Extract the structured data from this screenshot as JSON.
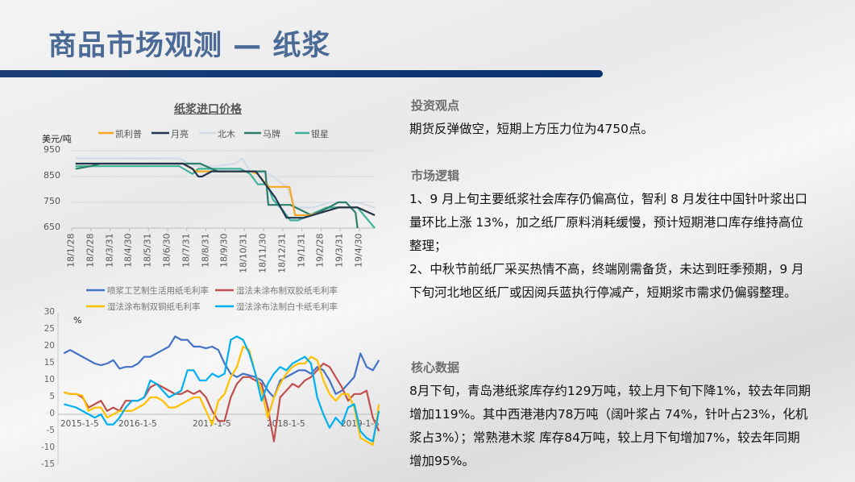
{
  "header": {
    "title": "商品市场观测 — 纸浆"
  },
  "sections": {
    "view": {
      "heading": "投资观点",
      "text": "期货反弹做空，短期上方压力位为4750点。"
    },
    "logic": {
      "heading": "市场逻辑",
      "p1": "1、9 月上旬主要纸浆社会库存仍偏高位，智利 8 月发往中国针叶浆出口量环比上涨 13%，加之纸厂原料消耗缓慢，预计短期港口库存维持高位整理；",
      "p2": "2、中秋节前纸厂采买热情不高，终端刚需备货，未达到旺季预期，9 月下旬河北地区纸厂或因阅兵蓝执行停减产，短期浆市需求仍偏弱整理。"
    },
    "core": {
      "heading": "核心数据",
      "text": "8月下旬，青岛港纸浆库存约129万吨，较上月下旬下降1%，较去年同期增加119%。其中西港港内78万吨（阔叶浆占 74%，针叶占23%，化机浆占3%）；常熟港木浆 库存84万吨，较上月下旬增加7%，较去年同期增加95%。"
    }
  },
  "chart_data": [
    {
      "type": "line",
      "title": "纸浆进口价格",
      "ylabel": "美元/吨",
      "ylim": [
        650,
        950
      ],
      "yticks": [
        "950",
        "850",
        "750",
        "650"
      ],
      "categories": [
        "18/1/28",
        "18/2/28",
        "18/3/31",
        "18/4/30",
        "18/5/31",
        "18/6/30",
        "18/7/31",
        "18/8/31",
        "18/9/30",
        "18/10/31",
        "18/11/30",
        "18/12/31",
        "19/1/31",
        "19/2/28",
        "19/3/31",
        "19/4/30"
      ],
      "grid": true,
      "legend": "top",
      "series": [
        {
          "name": "凯利普",
          "color": "#f5a623",
          "points": [
            [
              0.2,
              900
            ],
            [
              5.8,
              900
            ],
            [
              6.5,
              870
            ],
            [
              9.3,
              870
            ],
            [
              9.7,
              860
            ],
            [
              10.25,
              810
            ],
            [
              11.35,
              810
            ],
            [
              11.65,
              700
            ],
            [
              12.4,
              700
            ],
            [
              13.0,
              710
            ],
            [
              13.9,
              730
            ],
            [
              14.9,
              730
            ],
            [
              15.8,
              700
            ]
          ]
        },
        {
          "name": "月亮",
          "color": "#1f3550",
          "points": [
            [
              0.2,
              900
            ],
            [
              5.8,
              900
            ],
            [
              6.3,
              880
            ],
            [
              6.6,
              850
            ],
            [
              6.8,
              850
            ],
            [
              7.3,
              870
            ],
            [
              9.6,
              870
            ],
            [
              10.1,
              820
            ],
            [
              10.6,
              770
            ],
            [
              11.2,
              690
            ],
            [
              12.1,
              690
            ],
            [
              13.0,
              710
            ],
            [
              13.9,
              730
            ],
            [
              14.9,
              730
            ],
            [
              15.8,
              700
            ]
          ]
        },
        {
          "name": "北木",
          "color": "#d3dbe5",
          "points": [
            [
              0.2,
              920
            ],
            [
              5.6,
              920
            ],
            [
              6.5,
              890
            ],
            [
              7.5,
              890
            ],
            [
              8.5,
              900
            ],
            [
              8.9,
              920
            ],
            [
              9.3,
              870
            ],
            [
              10.3,
              860
            ],
            [
              11.2,
              810
            ],
            [
              11.7,
              730
            ],
            [
              12.6,
              730
            ],
            [
              13.5,
              750
            ],
            [
              14.9,
              750
            ],
            [
              15.8,
              730
            ]
          ]
        },
        {
          "name": "马牌",
          "color": "#2e7d6b",
          "points": [
            [
              0.2,
              880
            ],
            [
              1.0,
              890
            ],
            [
              1.5,
              900
            ],
            [
              6.7,
              900
            ],
            [
              7.3,
              880
            ],
            [
              7.6,
              870
            ],
            [
              9.3,
              870
            ],
            [
              10.1,
              870
            ],
            [
              10.25,
              740
            ],
            [
              11.4,
              740
            ],
            [
              12.5,
              700
            ],
            [
              13.4,
              730
            ],
            [
              13.9,
              750
            ],
            [
              14.3,
              750
            ],
            [
              14.8,
              710
            ],
            [
              14.9,
              650
            ]
          ]
        },
        {
          "name": "银星",
          "color": "#3fb39a",
          "points": [
            [
              0.2,
              890
            ],
            [
              5.6,
              890
            ],
            [
              6.3,
              860
            ],
            [
              6.6,
              880
            ],
            [
              8.8,
              880
            ],
            [
              9.3,
              860
            ],
            [
              9.7,
              820
            ],
            [
              10.2,
              820
            ],
            [
              10.5,
              760
            ],
            [
              11.0,
              720
            ],
            [
              11.4,
              680
            ],
            [
              11.8,
              680
            ],
            [
              12.7,
              710
            ],
            [
              13.3,
              730
            ],
            [
              14.9,
              730
            ],
            [
              15.8,
              650
            ]
          ]
        }
      ]
    },
    {
      "type": "line",
      "ylabel": "%",
      "ylim": [
        -15,
        30
      ],
      "yticks": [
        "30",
        "25",
        "20",
        "15",
        "10",
        "5",
        "0",
        "-5",
        "-10",
        "-15"
      ],
      "xticks": [
        "2015-1-5",
        "2016-1-5",
        "2017-1-5",
        "2018-1-5",
        "2019-1-5"
      ],
      "x_start": "2015-01",
      "x_interval": "month",
      "legend": "top",
      "series": [
        {
          "name": "喷浆工艺制生活用纸毛利率",
          "color": "#4472c4",
          "values": [
            18,
            19,
            18,
            17,
            16,
            15,
            14.5,
            15,
            16,
            13.5,
            14,
            14,
            15,
            17,
            17,
            18,
            19,
            20,
            23,
            22,
            22,
            20,
            20,
            19.5,
            20,
            19,
            15,
            12,
            11,
            12,
            11.5,
            11,
            10,
            7,
            5,
            10,
            11,
            12,
            13,
            13,
            12,
            14,
            13,
            10,
            6,
            7,
            9,
            11,
            18,
            14,
            13,
            16
          ]
        },
        {
          "name": "湿法未涂布制双胶纸毛利率",
          "color": "#c0504d",
          "values": [
            6.5,
            6,
            6,
            5,
            2,
            3,
            4,
            1,
            2,
            1,
            4,
            4,
            4,
            5,
            8,
            9,
            8,
            7,
            6,
            6,
            7,
            6,
            7,
            5,
            1,
            -2,
            -2,
            5,
            9,
            11,
            11,
            10,
            9,
            2,
            -8,
            5,
            7,
            9,
            8,
            10,
            11,
            13,
            15,
            14,
            11,
            8,
            4,
            6,
            6,
            7,
            -1,
            -5
          ]
        },
        {
          "name": "湿法涂布制双铜纸毛利率",
          "color": "#ffc000",
          "values": [
            6.5,
            6,
            6,
            5.5,
            1,
            2,
            2,
            -1,
            0,
            1,
            1,
            1,
            2,
            3,
            5,
            5,
            4,
            2,
            2,
            3,
            4,
            5,
            5,
            1,
            -3,
            4,
            6,
            11,
            14,
            20,
            19,
            12,
            7,
            -1,
            5,
            9,
            12,
            14,
            15,
            15,
            17,
            16,
            10,
            6,
            4,
            6,
            6,
            2,
            -7,
            -8,
            -9,
            3
          ]
        },
        {
          "name": "湿法涂布法制白卡纸毛利率",
          "color": "#00b0f0",
          "values": [
            3,
            2.5,
            2,
            1,
            0,
            -1,
            0,
            -3,
            -3,
            -1,
            2,
            4,
            4,
            5,
            10,
            9,
            7,
            5,
            6,
            7,
            13,
            13,
            10,
            10,
            12,
            11,
            12,
            22,
            23,
            22,
            18,
            12,
            4,
            9,
            12,
            14,
            13,
            15,
            16,
            17,
            15,
            5,
            0,
            -4,
            -1,
            -3,
            2,
            3,
            -5,
            -7,
            -8,
            1
          ]
        }
      ]
    }
  ]
}
